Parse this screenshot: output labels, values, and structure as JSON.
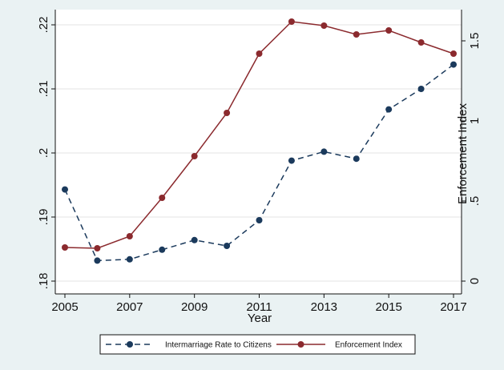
{
  "chart_data": {
    "type": "line",
    "xlabel": "Year",
    "ylabel": "",
    "y2label": "Enforcement Index",
    "x": [
      2005,
      2006,
      2007,
      2008,
      2009,
      2010,
      2011,
      2012,
      2013,
      2014,
      2015,
      2016,
      2017
    ],
    "xticks": [
      2005,
      2007,
      2009,
      2011,
      2013,
      2015,
      2017
    ],
    "xtick_labels": [
      "2005",
      "2007",
      "2009",
      "2011",
      "2013",
      "2015",
      "2017"
    ],
    "xlim": [
      2005,
      2017
    ],
    "ylim": [
      0.18,
      0.22
    ],
    "yticks": [
      0.18,
      0.19,
      0.2,
      0.21,
      0.22
    ],
    "ytick_labels": [
      ".18",
      ".19",
      ".2",
      ".21",
      ".22"
    ],
    "y2lim": [
      0,
      1.6
    ],
    "y2ticks": [
      0,
      0.5,
      1.0,
      1.5
    ],
    "y2tick_labels": [
      "0",
      ".5",
      "1",
      "1.5"
    ],
    "grid": "horizontal",
    "legend_position": "bottom",
    "series": [
      {
        "name": "Intermarriage Rate to Citizens",
        "axis": "left",
        "color": "#1b3a5c",
        "style": "dashed",
        "values": [
          0.1943,
          0.1832,
          0.1834,
          0.1849,
          0.1864,
          0.1855,
          0.1895,
          0.1988,
          0.2002,
          0.1991,
          0.2068,
          0.21,
          0.2138
        ]
      },
      {
        "name": "Enforcement Index",
        "axis": "right",
        "color": "#8b2a2e",
        "style": "solid",
        "values": [
          0.21,
          0.205,
          0.28,
          0.52,
          0.78,
          1.05,
          1.42,
          1.62,
          1.595,
          1.54,
          1.565,
          1.49,
          1.42
        ]
      }
    ]
  }
}
